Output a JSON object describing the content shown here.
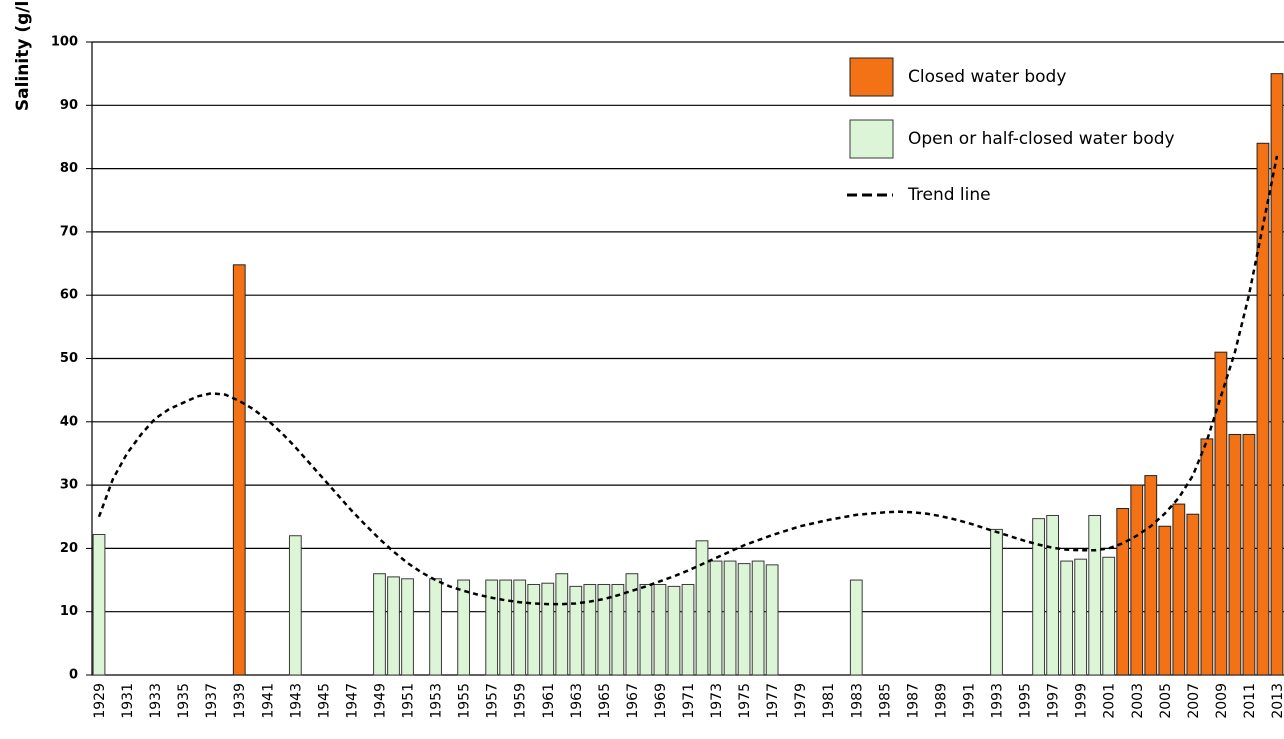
{
  "chart_data": {
    "type": "bar",
    "y_label": "Salinity (g/l)",
    "categories": [
      "1929",
      null,
      "1931",
      null,
      "1933",
      null,
      "1935",
      null,
      "1937",
      null,
      "1939",
      null,
      "1941",
      null,
      "1943",
      null,
      "1945",
      null,
      "1947",
      null,
      "1949",
      null,
      "1951",
      null,
      "1953",
      null,
      "1955",
      null,
      "1957",
      null,
      "1959",
      null,
      "1961",
      null,
      "1963",
      null,
      "1965",
      null,
      "1967",
      null,
      "1969",
      null,
      "1971",
      null,
      "1973",
      null,
      "1975",
      null,
      "1977",
      null,
      "1979",
      null,
      "1981",
      null,
      "1983",
      null,
      "1985",
      null,
      "1987",
      null,
      "1989",
      null,
      "1991",
      null,
      "1993",
      null,
      "1995",
      null,
      "1997",
      null,
      "1999",
      null,
      "2001",
      null,
      "2003",
      null,
      "2005",
      null,
      "2007",
      null,
      "2009",
      null,
      "2011",
      null,
      "2013"
    ],
    "series": [
      {
        "name": "Closed water body",
        "color": "#f47216",
        "border": "#222222",
        "values": [
          null,
          null,
          null,
          null,
          null,
          null,
          null,
          null,
          null,
          null,
          64.8,
          null,
          null,
          null,
          null,
          null,
          null,
          null,
          null,
          null,
          null,
          null,
          null,
          null,
          null,
          null,
          null,
          null,
          null,
          null,
          null,
          null,
          null,
          null,
          null,
          null,
          null,
          null,
          null,
          null,
          null,
          null,
          null,
          null,
          null,
          null,
          null,
          null,
          null,
          null,
          null,
          null,
          null,
          null,
          null,
          null,
          null,
          null,
          null,
          null,
          null,
          null,
          null,
          null,
          null,
          null,
          null,
          null,
          null,
          null,
          null,
          null,
          null,
          26.3,
          30,
          31.5,
          23.5,
          27,
          25.4,
          37.3,
          51,
          38,
          38,
          84,
          95
        ]
      },
      {
        "name": "Open or half-closed water body",
        "color": "#dcf5d6",
        "border": "#3a3a3a",
        "values": [
          22.2,
          null,
          null,
          null,
          null,
          null,
          null,
          null,
          null,
          null,
          null,
          null,
          null,
          null,
          22,
          null,
          null,
          null,
          null,
          null,
          16,
          15.5,
          15.2,
          null,
          15.2,
          null,
          15,
          null,
          15,
          15,
          15,
          14.3,
          14.5,
          16,
          14,
          14.3,
          14.3,
          14.3,
          16,
          14.3,
          14.3,
          14,
          14.3,
          21.2,
          18,
          18,
          17.6,
          18,
          17.4,
          null,
          null,
          null,
          null,
          null,
          15,
          null,
          null,
          null,
          null,
          null,
          null,
          null,
          null,
          null,
          23,
          null,
          null,
          24.7,
          25.2,
          18,
          18.3,
          25.2,
          18.6,
          null,
          null,
          null,
          null,
          null,
          null,
          null,
          null,
          null,
          null,
          null,
          null
        ]
      },
      {
        "name": "Trend line",
        "type": "line",
        "color": "#000000",
        "dashed": true,
        "values": [
          25,
          31,
          35,
          38,
          40.5,
          42,
          43,
          44,
          44.5,
          44.3,
          43.3,
          42,
          40.3,
          38.3,
          36,
          33.5,
          31,
          28.5,
          26,
          23.7,
          21.5,
          19.5,
          17.7,
          16.2,
          15,
          14,
          13.3,
          12.7,
          12.2,
          11.8,
          11.5,
          11.3,
          11.2,
          11.2,
          11.3,
          11.6,
          12,
          12.6,
          13.3,
          14,
          14.8,
          15.6,
          16.5,
          17.5,
          18.5,
          19.5,
          20.5,
          21.3,
          22.1,
          22.8,
          23.5,
          24,
          24.5,
          24.9,
          25.3,
          25.5,
          25.7,
          25.8,
          25.7,
          25.5,
          25.1,
          24.6,
          24,
          23.3,
          22.6,
          21.9,
          21.2,
          20.6,
          20.1,
          19.8,
          19.7,
          19.7,
          20,
          20.8,
          22,
          23.5,
          25.5,
          28,
          31.5,
          37,
          44,
          51,
          60,
          71,
          82
        ]
      }
    ],
    "ylim": [
      0,
      100
    ],
    "yticks": [
      0,
      10,
      20,
      30,
      40,
      50,
      60,
      70,
      80,
      90,
      100
    ],
    "grid": true,
    "legend": "top-right"
  }
}
